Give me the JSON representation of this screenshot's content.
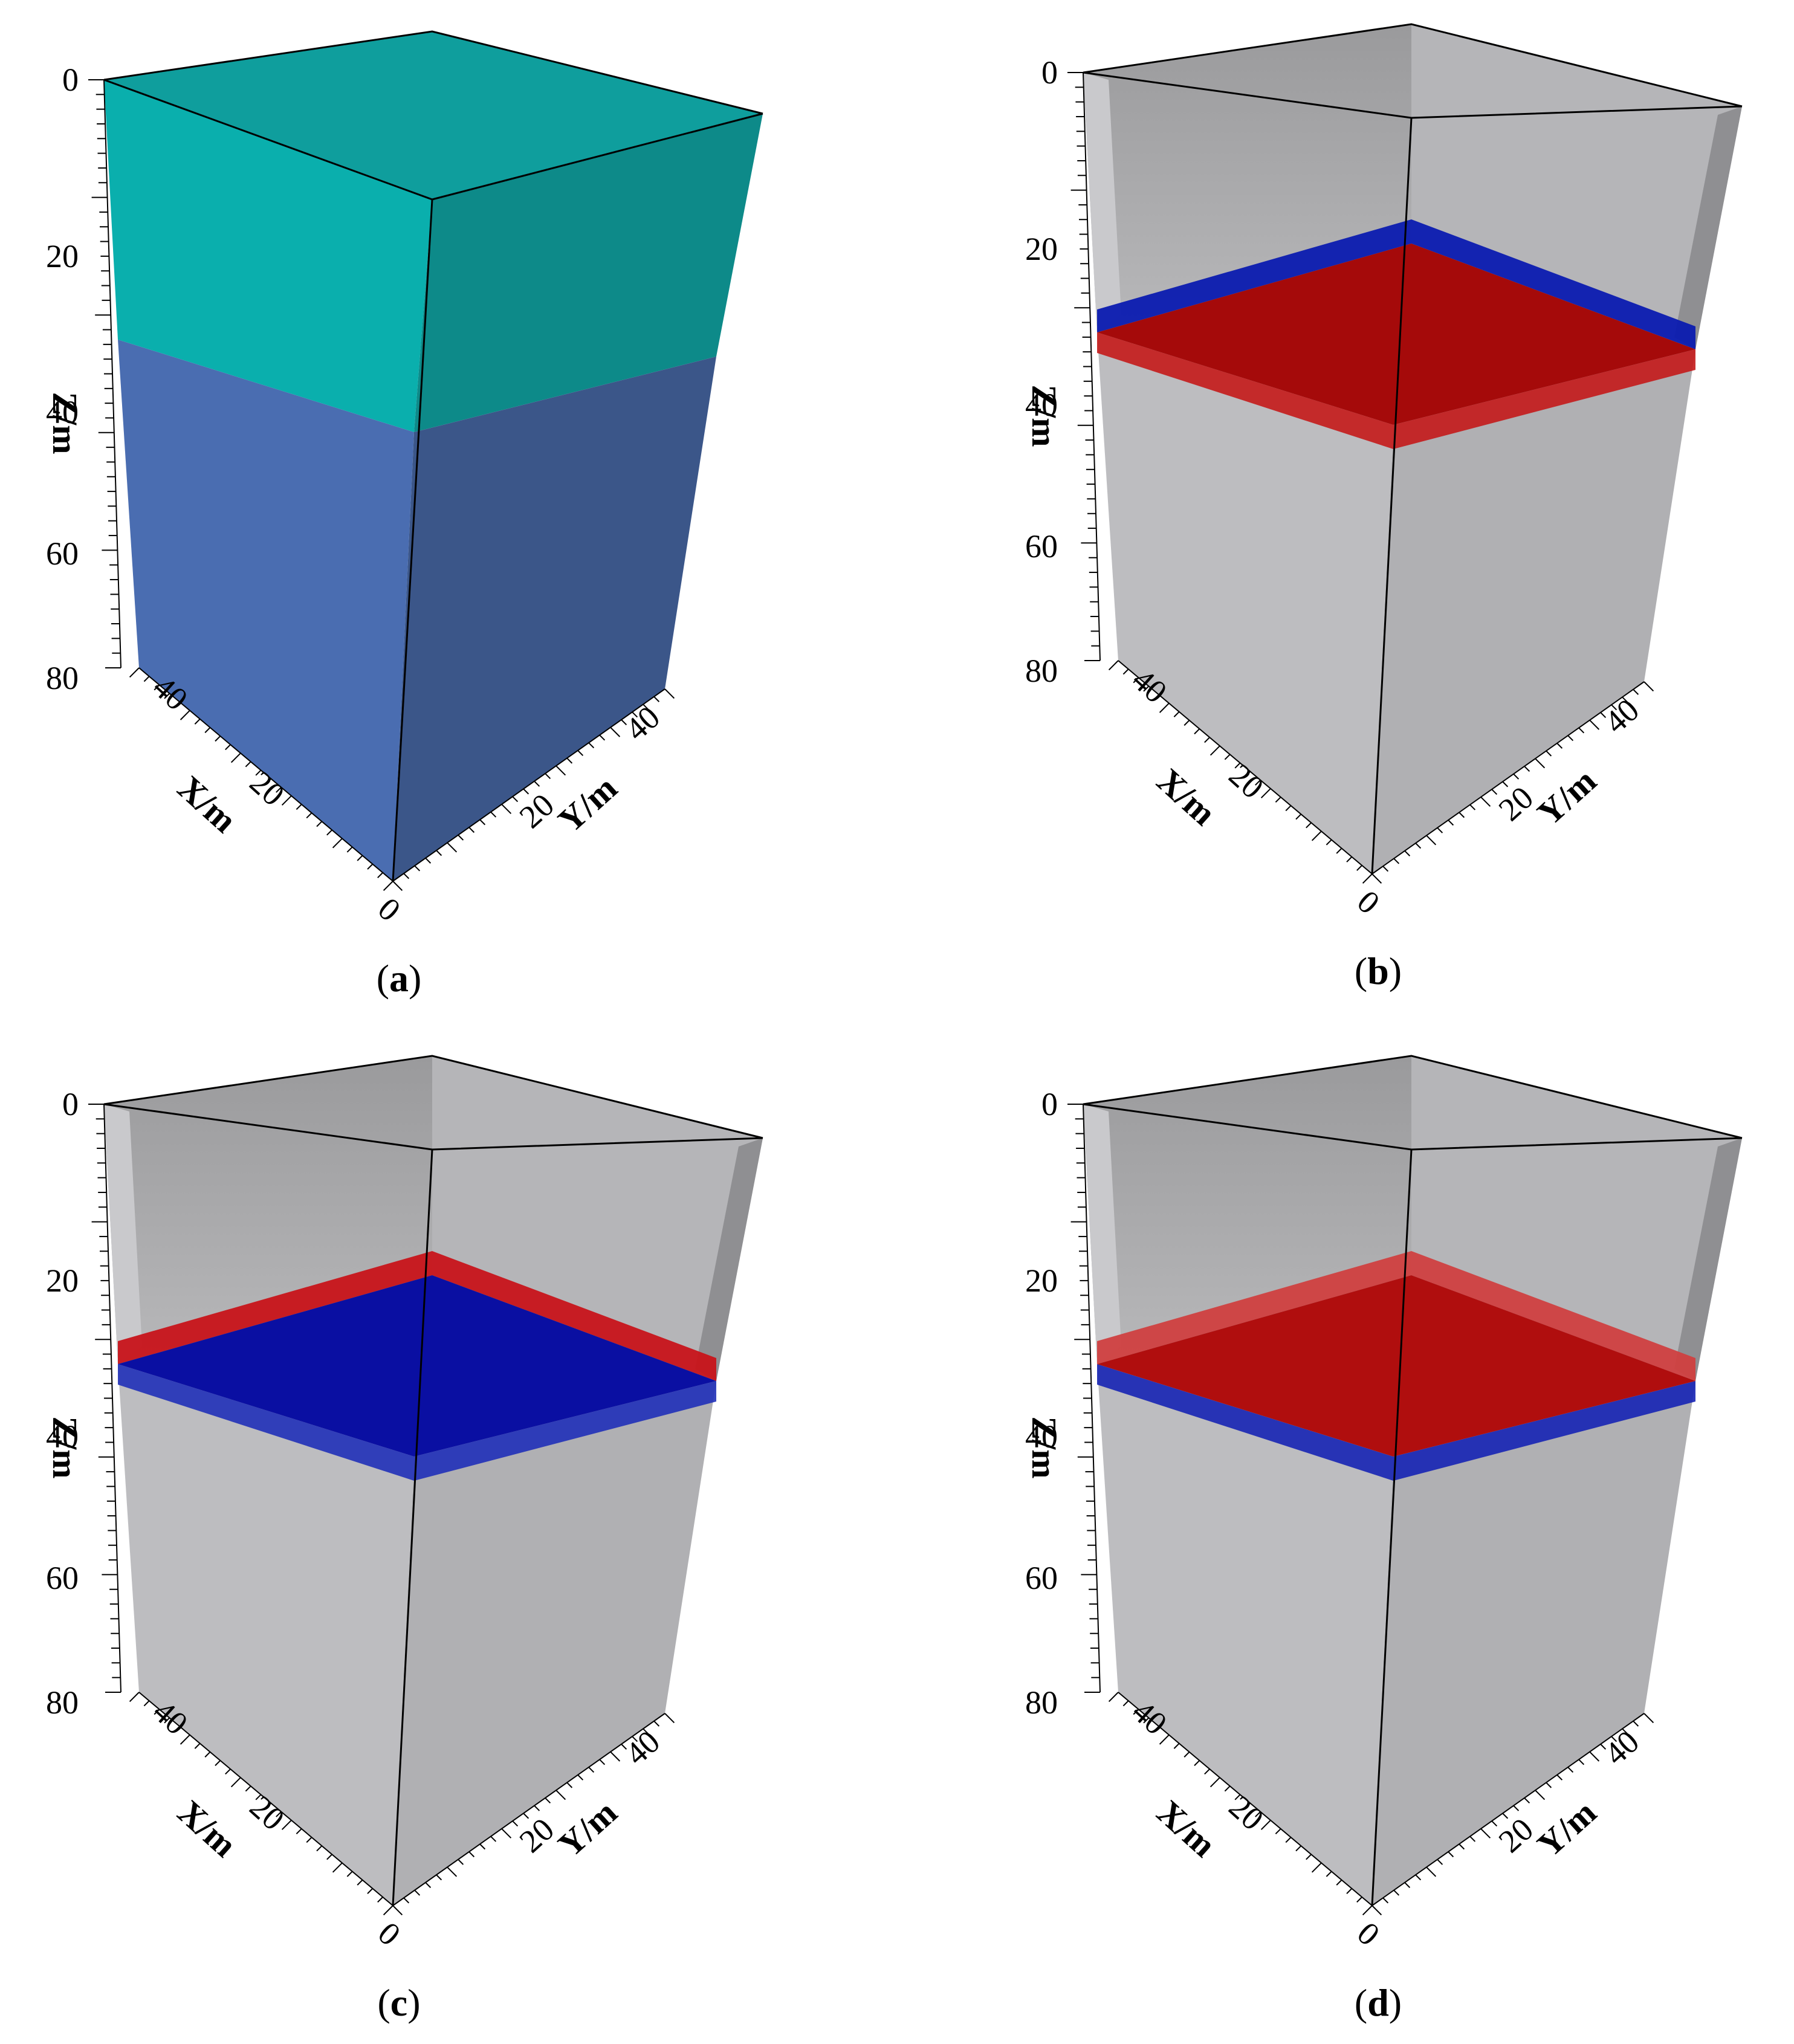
{
  "panels": [
    {
      "id": "a",
      "label": "a",
      "render": "model",
      "colors": {
        "upper_top": "#0f9e9d",
        "upper_left": "#0aafad",
        "upper_right": "#0d8a89",
        "lower_left": "#4a6db1",
        "lower_right": "#3b5689"
      },
      "z_ticks": [
        "0",
        "20",
        "40",
        "60",
        "80"
      ],
      "x_ticks": [
        "0",
        "20",
        "40"
      ],
      "y_ticks": [
        "20",
        "40"
      ],
      "z_label": "Z/m",
      "x_label": "X/m",
      "y_label": "Y/m"
    },
    {
      "id": "b",
      "label": "b",
      "render": "volume",
      "interface_color": "#a50a0a",
      "band_above": "#0b1bb0",
      "band_below": "#c41a1a",
      "z_ticks": [
        "0",
        "20",
        "40",
        "60",
        "80"
      ],
      "x_ticks": [
        "0",
        "20",
        "40"
      ],
      "y_ticks": [
        "20",
        "40"
      ],
      "z_label": "Z/m",
      "x_label": "X/m",
      "y_label": "Y/m"
    },
    {
      "id": "c",
      "label": "c",
      "render": "volume",
      "interface_color": "#0a0fa2",
      "band_above": "#c8141a",
      "band_below": "#2030b8",
      "z_ticks": [
        "0",
        "20",
        "40",
        "60",
        "80"
      ],
      "x_ticks": [
        "0",
        "20",
        "40"
      ],
      "y_ticks": [
        "20",
        "40"
      ],
      "z_label": "Z/m",
      "x_label": "X/m",
      "y_label": "Y/m"
    },
    {
      "id": "d",
      "label": "d",
      "render": "volume",
      "interface_color": "#b00e0e",
      "band_above": "#d04040",
      "band_below": "#1624b4",
      "z_ticks": [
        "0",
        "20",
        "40",
        "60",
        "80"
      ],
      "x_ticks": [
        "0",
        "20",
        "40"
      ],
      "y_ticks": [
        "20",
        "40"
      ],
      "z_label": "Z/m",
      "x_label": "X/m",
      "y_label": "Y/m"
    }
  ]
}
